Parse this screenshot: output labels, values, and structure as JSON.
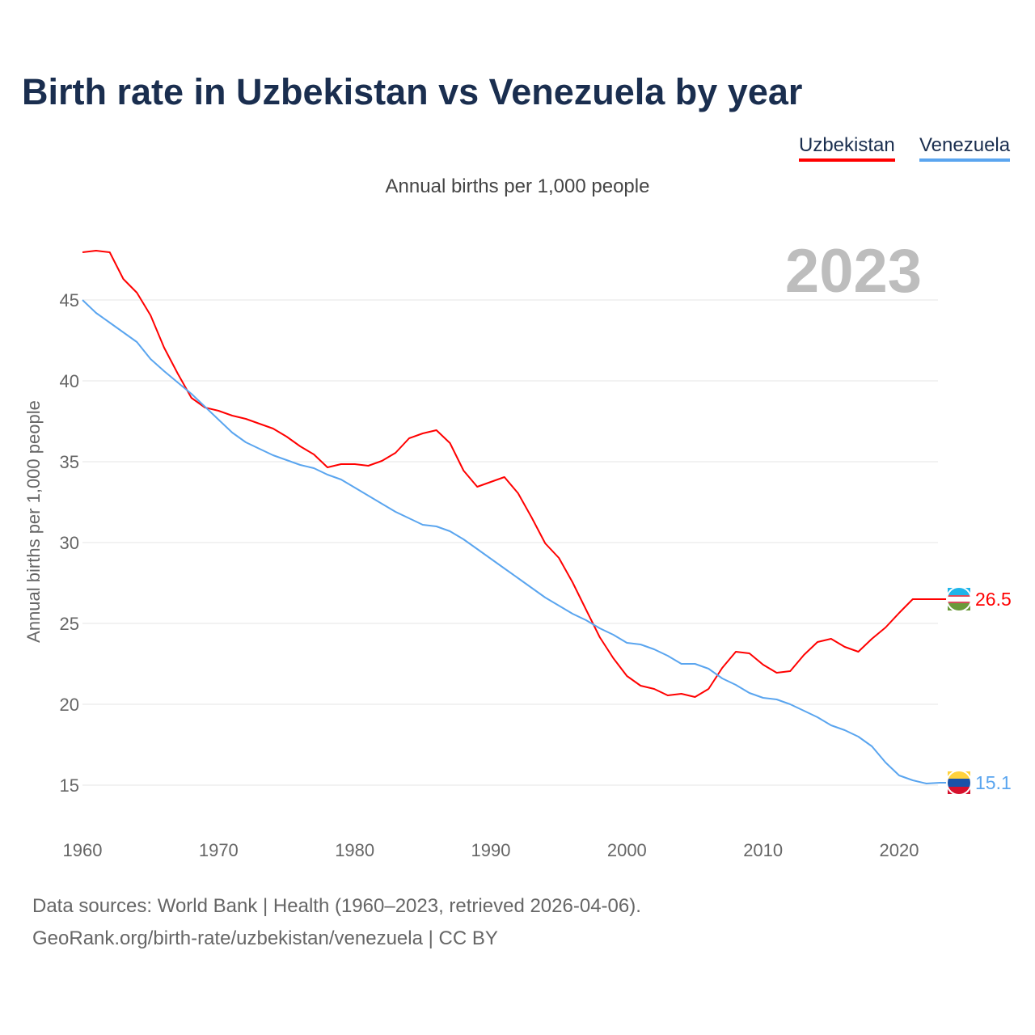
{
  "title": "Birth rate in Uzbekistan vs Venezuela by year",
  "current_year": "2023",
  "footer": {
    "line1": "Data sources: World Bank | Health (1960–2023, retrieved 2026-04-06).",
    "line2": "GeoRank.org/birth-rate/uzbekistan/venezuela | CC BY"
  },
  "chart_data": {
    "type": "line",
    "title": "Birth rate in Uzbekistan vs Venezuela by year",
    "subtitle": "Annual births per 1,000 people",
    "xlabel": "",
    "ylabel": "Annual births per 1,000 people",
    "xlim": [
      1960,
      2023
    ],
    "ylim": [
      12.5,
      48.5
    ],
    "xticks": [
      1960,
      1970,
      1980,
      1990,
      2000,
      2010,
      2020
    ],
    "yticks": [
      15,
      20,
      25,
      30,
      35,
      40,
      45
    ],
    "grid": true,
    "legend": "top-right",
    "x": [
      1960,
      1961,
      1962,
      1963,
      1964,
      1965,
      1966,
      1967,
      1968,
      1969,
      1970,
      1971,
      1972,
      1973,
      1974,
      1975,
      1976,
      1977,
      1978,
      1979,
      1980,
      1981,
      1982,
      1983,
      1984,
      1985,
      1986,
      1987,
      1988,
      1989,
      1990,
      1991,
      1992,
      1993,
      1994,
      1995,
      1996,
      1997,
      1998,
      1999,
      2000,
      2001,
      2002,
      2003,
      2004,
      2005,
      2006,
      2007,
      2008,
      2009,
      2010,
      2011,
      2012,
      2013,
      2014,
      2015,
      2016,
      2017,
      2018,
      2019,
      2020,
      2021,
      2022,
      2023
    ],
    "series": [
      {
        "name": "Uzbekistan",
        "color": "#ff0000",
        "end_label": "26.5",
        "values": [
          47.95,
          48.05,
          47.95,
          46.3,
          45.45,
          44.05,
          42.05,
          40.45,
          38.95,
          38.35,
          38.15,
          37.85,
          37.65,
          37.35,
          37.05,
          36.55,
          35.95,
          35.45,
          34.65,
          34.85,
          34.85,
          34.75,
          35.05,
          35.55,
          36.45,
          36.75,
          36.95,
          36.15,
          34.45,
          33.45,
          33.75,
          34.05,
          33.05,
          31.55,
          29.95,
          29.05,
          27.55,
          25.85,
          24.15,
          22.85,
          21.75,
          21.15,
          20.95,
          20.55,
          20.65,
          20.45,
          20.95,
          22.25,
          23.25,
          23.15,
          22.45,
          21.95,
          22.05,
          23.05,
          23.85,
          24.05,
          23.55,
          23.25,
          24.05,
          24.75,
          25.65,
          26.5,
          26.5,
          26.5
        ]
      },
      {
        "name": "Venezuela",
        "color": "#5aa5ef",
        "end_label": "15.1",
        "values": [
          45.0,
          44.2,
          43.6,
          43.0,
          42.4,
          41.35,
          40.6,
          39.9,
          39.2,
          38.4,
          37.6,
          36.8,
          36.2,
          35.8,
          35.4,
          35.1,
          34.8,
          34.6,
          34.2,
          33.9,
          33.4,
          32.9,
          32.4,
          31.9,
          31.5,
          31.1,
          31.0,
          30.7,
          30.2,
          29.6,
          29.0,
          28.4,
          27.8,
          27.2,
          26.6,
          26.1,
          25.6,
          25.2,
          24.7,
          24.3,
          23.8,
          23.7,
          23.4,
          23.0,
          22.5,
          22.5,
          22.2,
          21.6,
          21.2,
          20.7,
          20.4,
          20.3,
          20.0,
          19.6,
          19.2,
          18.7,
          18.4,
          18.0,
          17.4,
          16.4,
          15.6,
          15.3,
          15.1,
          15.15
        ]
      }
    ]
  }
}
